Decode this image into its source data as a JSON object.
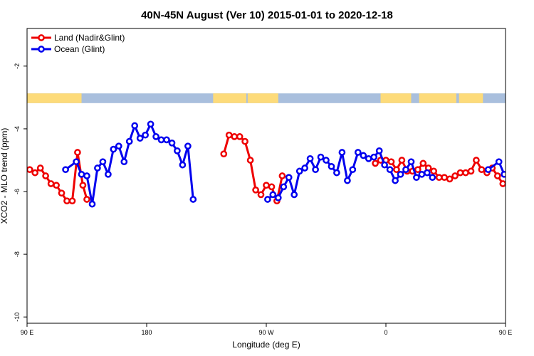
{
  "chart_data": {
    "type": "line",
    "title": "40N-45N August (Ver 10)   2015-01-01 to 2020-12-18",
    "xlabel": "Longitude (deg E)",
    "ylabel": "XCO2 - MLO trend (ppm)",
    "xlim": [
      90,
      450
    ],
    "ylim": [
      -10.2,
      -0.8
    ],
    "xticks": [
      {
        "value": 90,
        "label": "90 E"
      },
      {
        "value": 180,
        "label": "180"
      },
      {
        "value": 270,
        "label": "90 W"
      },
      {
        "value": 360,
        "label": "0"
      },
      {
        "value": 450,
        "label": "90 E"
      },
      {
        "value": 540,
        "label": "180"
      }
    ],
    "yticks": [
      {
        "value": -2,
        "label": "-2"
      },
      {
        "value": -4,
        "label": "-4"
      },
      {
        "value": -6,
        "label": "-6"
      },
      {
        "value": -8,
        "label": "-8"
      },
      {
        "value": -10,
        "label": "-10"
      }
    ],
    "legend_position": "top-left",
    "landmask_strip": {
      "y_range": [
        -3.18,
        -2.87
      ],
      "land_color": "#FDDB7A",
      "ocean_color": "#A9BFDD",
      "land_segments": [
        [
          90,
          131
        ],
        [
          230,
          255
        ],
        [
          256,
          279
        ],
        [
          356,
          379
        ],
        [
          385,
          413
        ],
        [
          415,
          433
        ]
      ]
    },
    "series": [
      {
        "name": "Land (Nadir&Glint)",
        "color": "#EE0000",
        "points": [
          [
            92,
            -5.3
          ],
          [
            96,
            -5.4
          ],
          [
            100,
            -5.25
          ],
          [
            104,
            -5.5
          ],
          [
            108,
            -5.75
          ],
          [
            112,
            -5.8
          ],
          [
            116,
            -6.05
          ],
          [
            120,
            -6.3
          ],
          [
            124,
            -6.3
          ],
          [
            128,
            -4.75
          ],
          [
            132,
            -5.8
          ],
          [
            135,
            -6.25
          ],
          null,
          [
            238,
            -4.8
          ],
          [
            242,
            -4.2
          ],
          [
            246,
            -4.25
          ],
          [
            250,
            -4.25
          ],
          [
            254,
            -4.4
          ],
          [
            258,
            -5.0
          ],
          [
            262,
            -5.95
          ],
          [
            266,
            -6.1
          ],
          [
            270,
            -5.8
          ],
          [
            274,
            -5.85
          ],
          [
            278,
            -6.3
          ],
          [
            282,
            -5.5
          ],
          null,
          [
            352,
            -5.1
          ],
          [
            356,
            -5.0
          ],
          [
            360,
            -5.0
          ],
          [
            364,
            -5.05
          ],
          [
            368,
            -5.3
          ],
          [
            372,
            -5.0
          ],
          [
            376,
            -5.35
          ],
          [
            380,
            -5.35
          ],
          [
            384,
            -5.3
          ],
          [
            388,
            -5.1
          ],
          [
            392,
            -5.25
          ],
          [
            396,
            -5.35
          ],
          [
            400,
            -5.55
          ],
          [
            404,
            -5.55
          ],
          [
            408,
            -5.6
          ],
          [
            412,
            -5.5
          ],
          [
            416,
            -5.4
          ],
          [
            420,
            -5.4
          ],
          [
            424,
            -5.35
          ],
          [
            428,
            -5.0
          ],
          [
            432,
            -5.3
          ],
          [
            436,
            -5.4
          ],
          [
            440,
            -5.25
          ],
          [
            444,
            -5.5
          ],
          [
            448,
            -5.75
          ],
          [
            452,
            -5.7
          ],
          [
            456,
            -6.1
          ],
          [
            460,
            -6.3
          ],
          [
            464,
            -6.3
          ],
          [
            468,
            -4.75
          ],
          [
            472,
            -5.8
          ],
          [
            475,
            -6.25
          ]
        ]
      },
      {
        "name": "Ocean (Glint)",
        "color": "#0000EE",
        "points": [
          [
            119,
            -5.3
          ],
          [
            127,
            -5.05
          ],
          [
            131,
            -5.45
          ],
          [
            135,
            -5.5
          ],
          [
            139,
            -6.4
          ],
          [
            143,
            -5.25
          ],
          [
            147,
            -5.05
          ],
          [
            151,
            -5.45
          ],
          [
            155,
            -4.65
          ],
          [
            159,
            -4.55
          ],
          [
            163,
            -5.05
          ],
          [
            167,
            -4.4
          ],
          [
            171,
            -3.9
          ],
          [
            175,
            -4.3
          ],
          [
            179,
            -4.2
          ],
          [
            183,
            -3.85
          ],
          [
            187,
            -4.25
          ],
          [
            191,
            -4.35
          ],
          [
            195,
            -4.35
          ],
          [
            199,
            -4.45
          ],
          [
            203,
            -4.7
          ],
          [
            207,
            -5.15
          ],
          [
            211,
            -4.55
          ],
          [
            215,
            -6.25
          ],
          null,
          [
            271,
            -6.25
          ],
          [
            275,
            -6.1
          ],
          [
            279,
            -6.2
          ],
          [
            283,
            -5.85
          ],
          [
            287,
            -5.55
          ],
          [
            291,
            -6.1
          ],
          [
            295,
            -5.35
          ],
          [
            299,
            -5.25
          ],
          [
            303,
            -4.95
          ],
          [
            307,
            -5.3
          ],
          [
            311,
            -4.9
          ],
          [
            315,
            -5.0
          ],
          [
            319,
            -5.2
          ],
          [
            323,
            -5.4
          ],
          [
            327,
            -4.75
          ],
          [
            331,
            -5.65
          ],
          [
            335,
            -5.3
          ],
          [
            339,
            -4.75
          ],
          [
            343,
            -4.85
          ],
          [
            347,
            -4.95
          ],
          [
            351,
            -4.9
          ],
          [
            355,
            -4.7
          ],
          [
            359,
            -5.15
          ],
          [
            363,
            -5.3
          ],
          [
            367,
            -5.65
          ],
          [
            371,
            -5.45
          ],
          [
            375,
            -5.3
          ],
          [
            379,
            -5.05
          ],
          [
            383,
            -5.55
          ],
          [
            387,
            -5.45
          ],
          [
            391,
            -5.4
          ],
          [
            395,
            -5.55
          ],
          null,
          [
            437,
            -5.3
          ],
          [
            445,
            -5.05
          ],
          [
            449,
            -5.45
          ],
          [
            453,
            -5.5
          ],
          [
            457,
            -6.4
          ],
          [
            461,
            -5.25
          ],
          [
            465,
            -5.05
          ],
          [
            469,
            -5.45
          ],
          [
            473,
            -4.65
          ],
          [
            477,
            -4.55
          ],
          [
            481,
            -5.05
          ],
          [
            485,
            -4.4
          ]
        ]
      }
    ]
  }
}
